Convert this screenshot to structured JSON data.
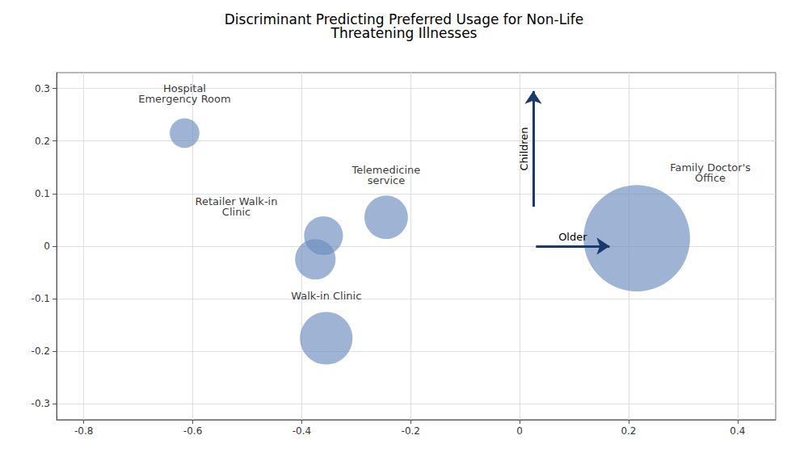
{
  "chart_data": {
    "type": "bubble",
    "title": "Discriminant Predicting Preferred Usage for Non-Life\nThreatening Illnesses",
    "x": [
      -0.615,
      -0.245,
      -0.36,
      -0.375,
      -0.355,
      0.215
    ],
    "y": [
      0.215,
      0.055,
      0.02,
      -0.025,
      -0.175,
      0.015
    ],
    "sizes": [
      700,
      1500,
      1200,
      1300,
      2200,
      9000
    ],
    "color": "#6b8cbe",
    "xlim": [
      -0.85,
      0.47
    ],
    "ylim": [
      -0.33,
      0.33
    ],
    "xticks": [
      -0.8,
      -0.6,
      -0.4,
      -0.2,
      0,
      0.2,
      0.4
    ],
    "yticks": [
      -0.3,
      -0.2,
      -0.1,
      0,
      0.1,
      0.2,
      0.3
    ],
    "grid": true,
    "annotations": [
      {
        "text": "Hospital\nEmergency Room",
        "x": -0.615,
        "y": 0.27
      },
      {
        "text": "Telemedicine\nservice",
        "x": -0.245,
        "y": 0.115
      },
      {
        "text": "Retailer Walk-in\nClinic",
        "x": -0.52,
        "y": 0.055
      },
      {
        "text": "Walk-in Clinic",
        "x": -0.355,
        "y": -0.105
      },
      {
        "text": "Family Doctor's\nOffice",
        "x": 0.35,
        "y": 0.12
      }
    ],
    "arrows": [
      {
        "text": "Children",
        "from": [
          0.025,
          0.075
        ],
        "to": [
          0.025,
          0.295
        ],
        "color": "#1a3a6b"
      },
      {
        "text": "Older",
        "from": [
          0.03,
          0
        ],
        "to": [
          0.165,
          0
        ],
        "color": "#1a3a6b"
      }
    ]
  }
}
